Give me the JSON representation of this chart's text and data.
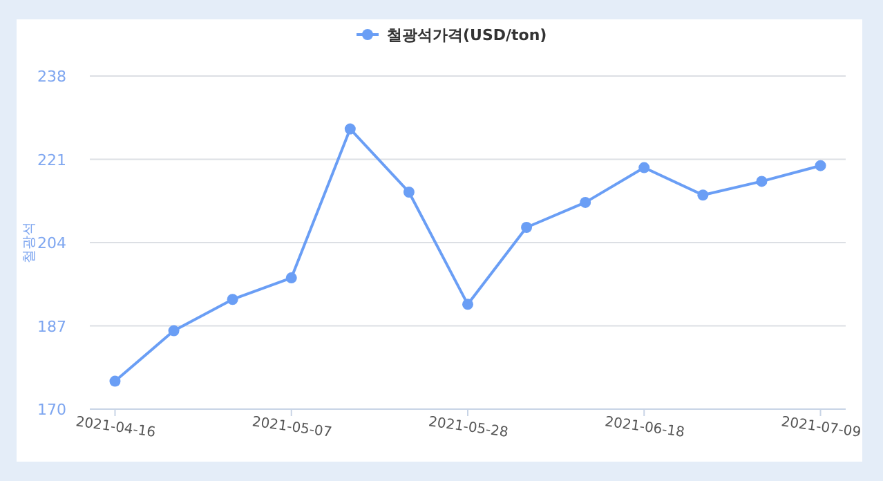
{
  "chart_data": {
    "type": "line",
    "ylabel": "철광석",
    "x": [
      "2021-04-16",
      "2021-04-23",
      "2021-04-30",
      "2021-05-07",
      "2021-05-14",
      "2021-05-21",
      "2021-05-28",
      "2021-06-04",
      "2021-06-11",
      "2021-06-18",
      "2021-06-25",
      "2021-07-02",
      "2021-07-09"
    ],
    "series": [
      {
        "name": "철광석가격(USD/ton)",
        "color": "#6a9ef5",
        "values": [
          175.7,
          186.0,
          192.4,
          196.8,
          227.2,
          214.3,
          191.4,
          207.1,
          212.2,
          219.3,
          213.7,
          216.5,
          219.7
        ]
      }
    ],
    "xlim": [
      "2021-04-13",
      "2021-07-12"
    ],
    "xticks": [
      "2021-04-16",
      "2021-05-07",
      "2021-05-28",
      "2021-06-18",
      "2021-07-09"
    ],
    "ylim": [
      170,
      238
    ],
    "yticks": [
      170,
      187,
      204,
      221,
      238
    ],
    "grid": "y",
    "legend": "top",
    "marker": "circle",
    "line_style": "solid"
  }
}
